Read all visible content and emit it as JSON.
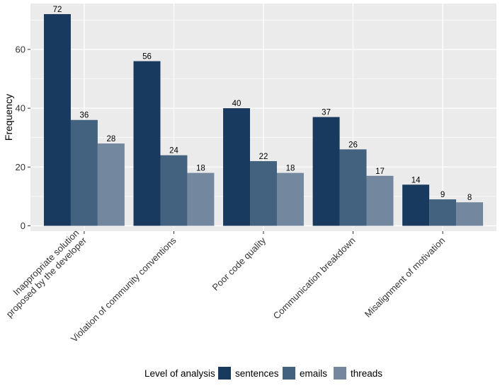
{
  "chart_data": {
    "type": "bar",
    "title": "",
    "xlabel": "",
    "ylabel": "Frequency",
    "ylim": [
      -1.8,
      75.6
    ],
    "yticks": [
      0,
      20,
      40,
      60
    ],
    "grid": true,
    "legend_position": "bottom",
    "legend_title": "Level of analysis",
    "categories": [
      [
        "Inappropriate solution",
        "proposed by the developer"
      ],
      [
        "Violation of community conventions"
      ],
      [
        "Poor code quality"
      ],
      [
        "Communication breakdown"
      ],
      [
        "Misalignment of motivation"
      ]
    ],
    "series": [
      {
        "name": "sentences",
        "color": "#173a5e",
        "values": [
          72,
          56,
          40,
          37,
          14
        ]
      },
      {
        "name": "emails",
        "color": "#42627f",
        "values": [
          36,
          24,
          22,
          26,
          9
        ]
      },
      {
        "name": "threads",
        "color": "#73889e",
        "values": [
          28,
          18,
          18,
          17,
          8
        ]
      }
    ],
    "panel_background": "#ebebeb",
    "grid_color": "#ffffff"
  }
}
